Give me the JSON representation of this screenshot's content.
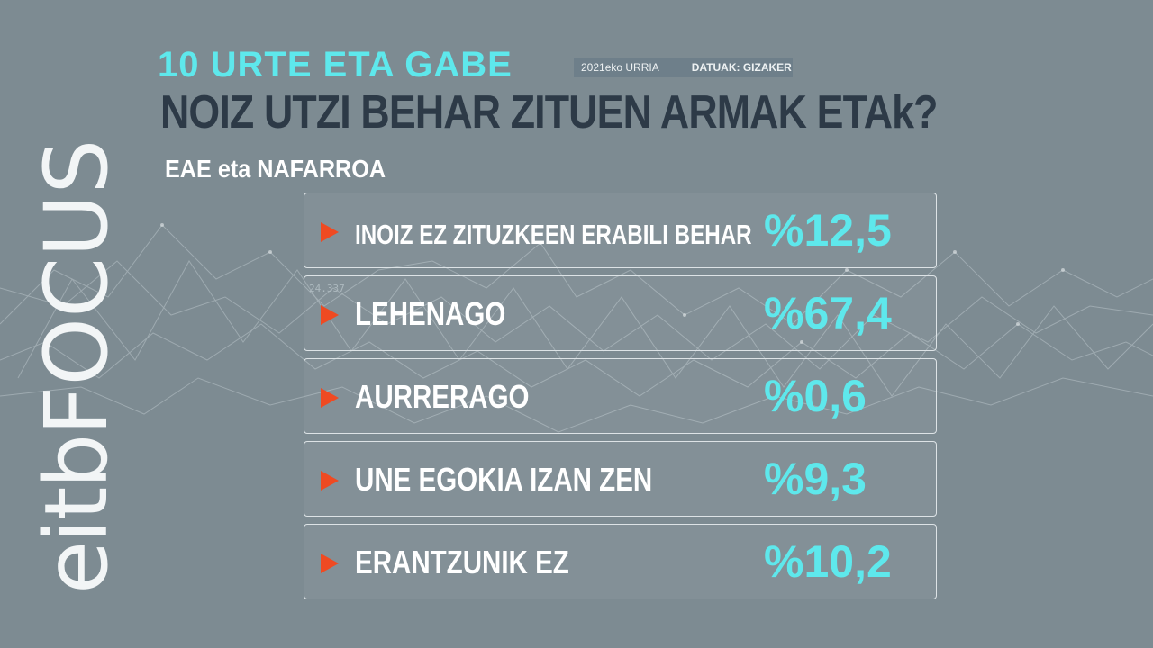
{
  "header": {
    "kicker": "10 URTE ETA GABE",
    "date": "2021eko URRIA",
    "source": "DATUAK: GIZAKER",
    "title": "NOIZ UTZI BEHAR ZITUEN ARMAK ETAk?",
    "region": "EAE eta NAFARROA"
  },
  "logo": {
    "brand": "eitb",
    "product": "FOCUS"
  },
  "background_readout": "24.337",
  "colors": {
    "background": "#7d8b92",
    "accent_cyan": "#5ee8ec",
    "arrow_orange": "#ef4a22",
    "headline": "#2d3a47"
  },
  "chart_data": {
    "type": "table",
    "title": "NOIZ UTZI BEHAR ZITUEN ARMAK ETAk?",
    "subtitle": "EAE eta NAFARROA",
    "unit": "%",
    "rows": [
      {
        "label": "INOIZ EZ ZITUZKEEN ERABILI BEHAR",
        "value": 12.5,
        "display": "%12,5"
      },
      {
        "label": "LEHENAGO",
        "value": 67.4,
        "display": "%67,4"
      },
      {
        "label": "AURRERAGO",
        "value": 0.6,
        "display": "%0,6"
      },
      {
        "label": "UNE EGOKIA IZAN ZEN",
        "value": 9.3,
        "display": "%9,3"
      },
      {
        "label": "ERANTZUNIK EZ",
        "value": 10.2,
        "display": "%10,2"
      }
    ]
  }
}
